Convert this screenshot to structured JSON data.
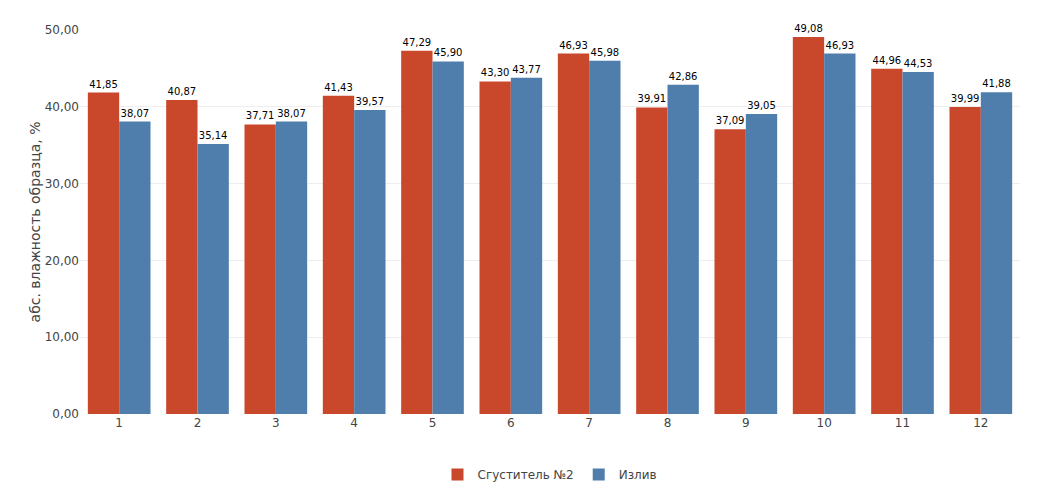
{
  "chart_data": {
    "type": "bar",
    "ylabel": "абс. влажность образца, %",
    "categories": [
      "1",
      "2",
      "3",
      "4",
      "5",
      "6",
      "7",
      "8",
      "9",
      "10",
      "11",
      "12"
    ],
    "series": [
      {
        "name": "Сгуститель №2",
        "color": "#C9472B",
        "values": [
          41.85,
          40.87,
          37.71,
          41.43,
          47.29,
          43.3,
          46.93,
          39.91,
          37.09,
          49.08,
          44.96,
          39.99
        ],
        "value_labels": [
          "41,85",
          "40,87",
          "37,71",
          "41,43",
          "47,29",
          "43,30",
          "46,93",
          "39,91",
          "37,09",
          "49,08",
          "44,96",
          "39,99"
        ]
      },
      {
        "name": "Излив",
        "color": "#4F7EAD",
        "values": [
          38.07,
          35.14,
          38.07,
          39.57,
          45.9,
          43.77,
          45.98,
          42.86,
          39.05,
          46.93,
          44.53,
          41.88
        ],
        "value_labels": [
          "38,07",
          "35,14",
          "38,07",
          "39,57",
          "45,90",
          "43,77",
          "45,98",
          "42,86",
          "39,05",
          "46,93",
          "44,53",
          "41,88"
        ]
      }
    ],
    "ylim": [
      0,
      50
    ],
    "yticks": [
      {
        "value": 0,
        "label": "0,00"
      },
      {
        "value": 10,
        "label": "10,00"
      },
      {
        "value": 20,
        "label": "20,00"
      },
      {
        "value": 30,
        "label": "30,00"
      },
      {
        "value": 40,
        "label": "40,00"
      },
      {
        "value": 50,
        "label": "50,00"
      }
    ],
    "grid": true,
    "legend": "bottom",
    "data_labels": true
  }
}
